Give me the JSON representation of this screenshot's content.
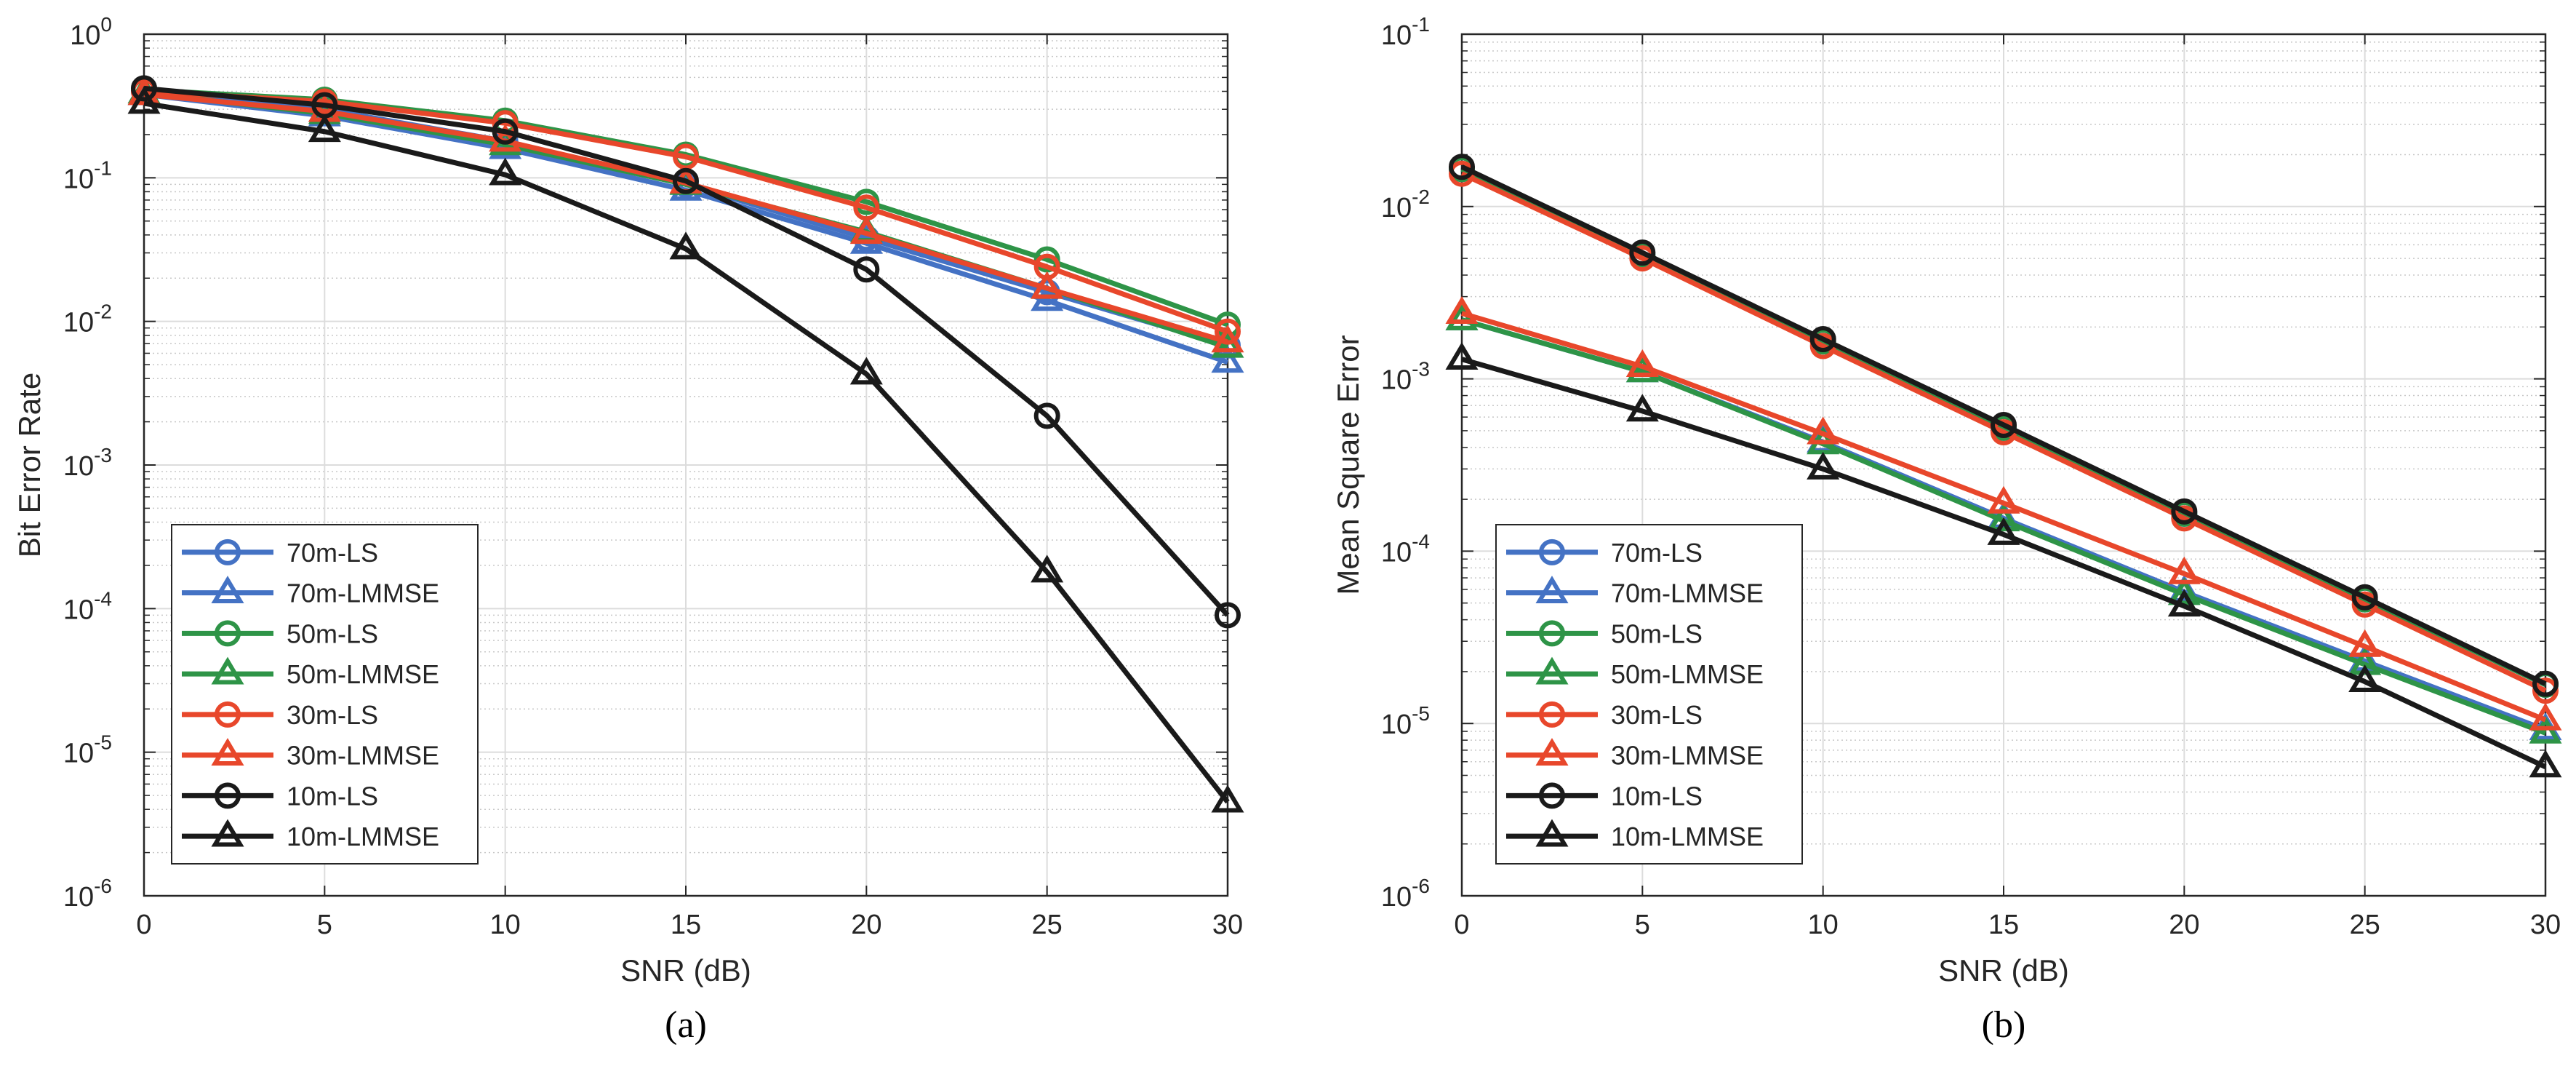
{
  "chart_data": [
    {
      "type": "line",
      "panel_label": "(a)",
      "xlabel": "SNR (dB)",
      "ylabel": "Bit Error Rate",
      "x": [
        0,
        5,
        10,
        15,
        20,
        25,
        30
      ],
      "xlim": [
        0,
        30
      ],
      "xticks": [
        "0",
        "5",
        "10",
        "15",
        "20",
        "25",
        "30"
      ],
      "yscale": "log",
      "ylim": [
        1e-06,
        1
      ],
      "yticks": [
        {
          "base": "10",
          "exp": "-6"
        },
        {
          "base": "10",
          "exp": "-5"
        },
        {
          "base": "10",
          "exp": "-4"
        },
        {
          "base": "10",
          "exp": "-3"
        },
        {
          "base": "10",
          "exp": "-2"
        },
        {
          "base": "10",
          "exp": "-1"
        },
        {
          "base": "10",
          "exp": "0"
        }
      ],
      "grid": true,
      "legend_position": "bottom-left",
      "series": [
        {
          "name": "70m-LS",
          "color": "#4472c4",
          "marker": "circle",
          "values": [
            0.4,
            0.3,
            0.18,
            0.09,
            0.038,
            0.016,
            0.0068
          ]
        },
        {
          "name": "70m-LMMSE",
          "color": "#4472c4",
          "marker": "triangle",
          "values": [
            0.38,
            0.27,
            0.16,
            0.082,
            0.035,
            0.014,
            0.0052
          ]
        },
        {
          "name": "50m-LS",
          "color": "#2e9447",
          "marker": "circle",
          "values": [
            0.41,
            0.35,
            0.25,
            0.145,
            0.068,
            0.027,
            0.0095
          ]
        },
        {
          "name": "50m-LMMSE",
          "color": "#2e9447",
          "marker": "triangle",
          "values": [
            0.39,
            0.28,
            0.17,
            0.09,
            0.042,
            0.017,
            0.0066
          ]
        },
        {
          "name": "30m-LS",
          "color": "#e8472b",
          "marker": "circle",
          "values": [
            0.4,
            0.34,
            0.24,
            0.14,
            0.062,
            0.024,
            0.0085
          ]
        },
        {
          "name": "30m-LMMSE",
          "color": "#e8472b",
          "marker": "triangle",
          "values": [
            0.38,
            0.29,
            0.18,
            0.092,
            0.041,
            0.017,
            0.0072
          ]
        },
        {
          "name": "10m-LS",
          "color": "#1a1a1a",
          "marker": "circle",
          "values": [
            0.42,
            0.32,
            0.21,
            0.095,
            0.023,
            0.0022,
            9e-05
          ]
        },
        {
          "name": "10m-LMMSE",
          "color": "#1a1a1a",
          "marker": "triangle",
          "values": [
            0.33,
            0.21,
            0.105,
            0.032,
            0.0043,
            0.00018,
            4.5e-06
          ]
        }
      ]
    },
    {
      "type": "line",
      "panel_label": "(b)",
      "xlabel": "SNR (dB)",
      "ylabel": "Mean Square Error",
      "x": [
        0,
        5,
        10,
        15,
        20,
        25,
        30
      ],
      "xlim": [
        0,
        30
      ],
      "xticks": [
        "0",
        "5",
        "10",
        "15",
        "20",
        "25",
        "30"
      ],
      "yscale": "log",
      "ylim": [
        1e-06,
        0.1
      ],
      "yticks": [
        {
          "base": "10",
          "exp": "-6"
        },
        {
          "base": "10",
          "exp": "-5"
        },
        {
          "base": "10",
          "exp": "-4"
        },
        {
          "base": "10",
          "exp": "-3"
        },
        {
          "base": "10",
          "exp": "-2"
        },
        {
          "base": "10",
          "exp": "-1"
        }
      ],
      "grid": true,
      "legend_position": "bottom-left",
      "series": [
        {
          "name": "70m-LS",
          "color": "#4472c4",
          "marker": "circle",
          "values": [
            0.0165,
            0.0052,
            0.00165,
            0.00052,
            0.000165,
            5.25e-05,
            1.68e-05
          ]
        },
        {
          "name": "70m-LMMSE",
          "color": "#4472c4",
          "marker": "triangle",
          "values": [
            0.0022,
            0.0011,
            0.00043,
            0.000155,
            5.8e-05,
            2.3e-05,
            9.2e-06
          ]
        },
        {
          "name": "50m-LS",
          "color": "#2e9447",
          "marker": "circle",
          "values": [
            0.0165,
            0.0052,
            0.00165,
            0.00052,
            0.000165,
            5.25e-05,
            1.68e-05
          ]
        },
        {
          "name": "50m-LMMSE",
          "color": "#2e9447",
          "marker": "triangle",
          "values": [
            0.0022,
            0.0011,
            0.00042,
            0.00015,
            5.6e-05,
            2.2e-05,
            8.8e-06
          ]
        },
        {
          "name": "30m-LS",
          "color": "#e8472b",
          "marker": "circle",
          "values": [
            0.0155,
            0.005,
            0.00155,
            0.00049,
            0.000155,
            4.9e-05,
            1.55e-05
          ]
        },
        {
          "name": "30m-LMMSE",
          "color": "#e8472b",
          "marker": "triangle",
          "values": [
            0.0024,
            0.00118,
            0.00048,
            0.00019,
            7.4e-05,
            2.8e-05,
            1.05e-05
          ]
        },
        {
          "name": "10m-LS",
          "color": "#1a1a1a",
          "marker": "circle",
          "values": [
            0.017,
            0.0054,
            0.0017,
            0.00054,
            0.00017,
            5.4e-05,
            1.7e-05
          ]
        },
        {
          "name": "10m-LMMSE",
          "color": "#1a1a1a",
          "marker": "triangle",
          "values": [
            0.0013,
            0.00065,
            0.0003,
            0.000125,
            4.8e-05,
            1.75e-05,
            5.6e-06
          ]
        }
      ]
    }
  ]
}
